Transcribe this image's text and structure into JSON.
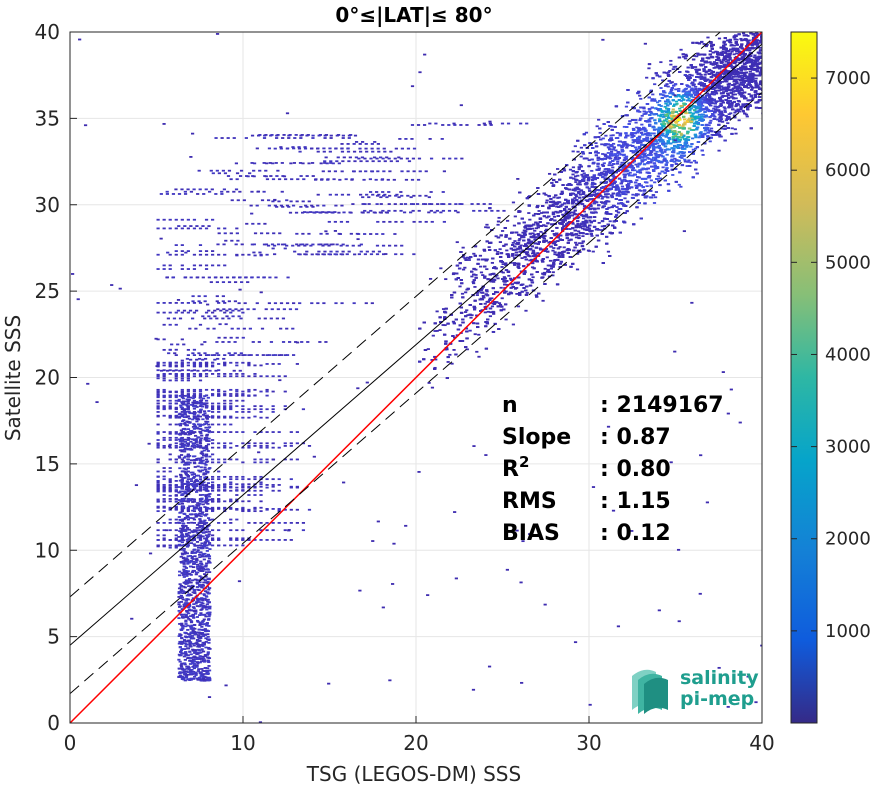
{
  "chart_data": {
    "type": "heatmap",
    "title": "0°≤|LAT|≤ 80°",
    "xlabel": "TSG (LEGOS-DM) SSS",
    "ylabel": "Satellite SSS",
    "xlim": [
      0,
      40
    ],
    "ylim": [
      0,
      40
    ],
    "xticks": [
      "0",
      "10",
      "20",
      "30",
      "40"
    ],
    "yticks": [
      "0",
      "5",
      "10",
      "15",
      "20",
      "25",
      "30",
      "35",
      "40"
    ],
    "grid": true,
    "colorbar": {
      "range": [
        0,
        7500
      ],
      "ticks": [
        "1000",
        "2000",
        "3000",
        "4000",
        "5000",
        "6000",
        "7000"
      ],
      "colormap": "parula"
    },
    "density_clusters": [
      {
        "x": 35.2,
        "y": 35.0,
        "sx": 0.8,
        "sy": 0.9,
        "peak": 7000
      },
      {
        "x": 33.5,
        "y": 33.0,
        "sx": 2.5,
        "sy": 2.5,
        "peak": 1300
      },
      {
        "x": 7.0,
        "y": 10.5,
        "sx": 0.5,
        "sy": 3.5,
        "peak": 400
      }
    ],
    "lines": [
      {
        "name": "1:1 line",
        "slope": 1.0,
        "intercept": 0.0,
        "color": "#ff0000",
        "style": "solid"
      },
      {
        "name": "regression",
        "slope": 0.87,
        "intercept": 4.5,
        "color": "#000000",
        "style": "solid"
      },
      {
        "name": "regression + 2 std",
        "slope": 0.87,
        "intercept": 7.3,
        "color": "#000000",
        "style": "dashed"
      },
      {
        "name": "regression - 2 std",
        "slope": 0.87,
        "intercept": 1.7,
        "color": "#000000",
        "style": "dashed"
      }
    ],
    "stats": [
      {
        "label": "n",
        "value": ": 2149167"
      },
      {
        "label": "Slope",
        "value": ": 0.87"
      },
      {
        "label": "R",
        "sup": "2",
        "value": ": 0.80"
      },
      {
        "label": "RMS",
        "value": ": 1.15"
      },
      {
        "label": "BIAS",
        "value": ": 0.12"
      }
    ]
  },
  "logo": {
    "line1": "salinity",
    "line2": "pi-mep"
  },
  "colors": {
    "low": "#3d26a8",
    "high": "#f9fb0e",
    "one_to_one": "#ff0000",
    "grid": "#e6e6e6"
  }
}
